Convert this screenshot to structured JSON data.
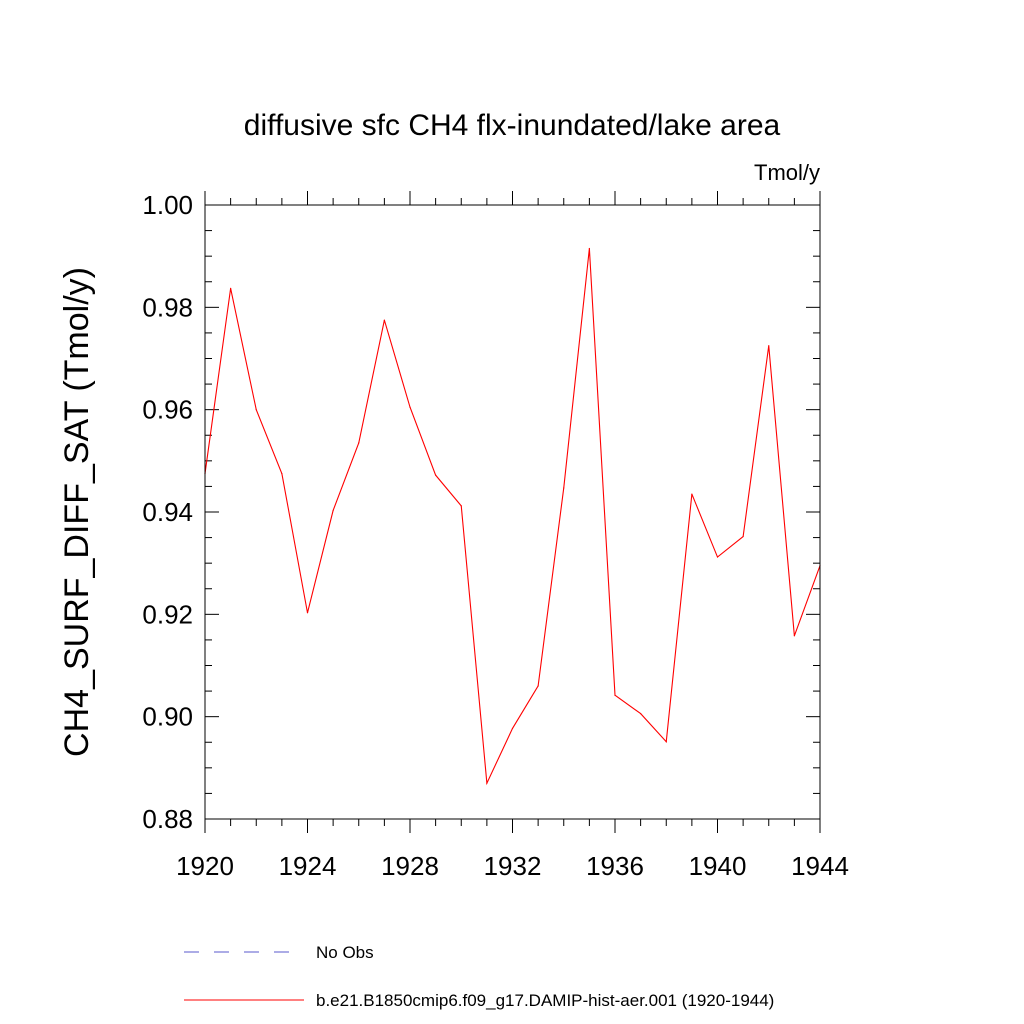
{
  "chart_data": {
    "type": "line",
    "title": "diffusive sfc CH4 flx-inundated/lake area",
    "units": "Tmol/y",
    "xlabel": "",
    "ylabel": "CH4_SURF_DIFF_SAT  (Tmol/y)",
    "xlim": [
      1920,
      1944
    ],
    "ylim": [
      0.88,
      1.0
    ],
    "x_ticks": [
      "1920",
      "1924",
      "1928",
      "1932",
      "1936",
      "1940",
      "1944"
    ],
    "y_ticks": [
      "0.88",
      "0.90",
      "0.92",
      "0.94",
      "0.96",
      "0.98",
      "1.00"
    ],
    "grid": false,
    "legend_position": "bottom",
    "x": [
      1920,
      1921,
      1922,
      1923,
      1924,
      1925,
      1926,
      1927,
      1928,
      1929,
      1930,
      1931,
      1932,
      1933,
      1934,
      1935,
      1936,
      1937,
      1938,
      1939,
      1940,
      1941,
      1942,
      1943,
      1944
    ],
    "series": [
      {
        "name": "b.e21.B1850cmip6.f09_g17.DAMIP-hist-aer.001 (1920-1944)",
        "color": "#ff0000",
        "dash": "solid",
        "values": [
          0.9475,
          0.9837,
          0.96,
          0.9475,
          0.9203,
          0.9403,
          0.9535,
          0.9775,
          0.9605,
          0.9472,
          0.9412,
          0.887,
          0.8977,
          0.906,
          0.9447,
          0.9915,
          0.9042,
          0.9006,
          0.8951,
          0.9435,
          0.9312,
          0.9352,
          0.9725,
          0.9158,
          0.9295
        ]
      }
    ],
    "legend": [
      {
        "label": "No Obs",
        "color": "#5a5acc",
        "dash": "dashed"
      },
      {
        "label": "b.e21.B1850cmip6.f09_g17.DAMIP-hist-aer.001 (1920-1944)",
        "color": "#ff0000",
        "dash": "solid"
      }
    ]
  }
}
